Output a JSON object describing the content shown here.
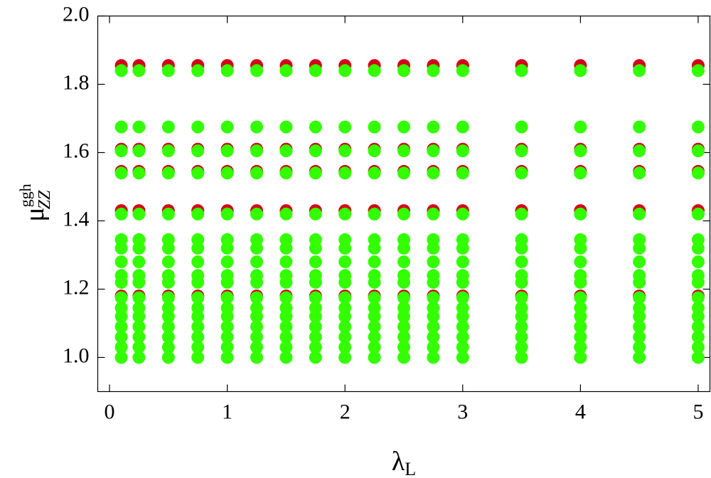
{
  "chart_data": {
    "type": "scatter",
    "xlabel": "λ",
    "xlabel_sub": "L",
    "ylabel": "μ",
    "ylabel_sup": "ggh",
    "ylabel_sub": "ZZ",
    "xlim": [
      -0.1,
      5.1
    ],
    "ylim": [
      0.9,
      2.0
    ],
    "xticks": [
      0,
      1,
      2,
      3,
      4,
      5
    ],
    "yticks": [
      {
        "value": 1,
        "label": "1.0"
      },
      1.2,
      1.4,
      1.6,
      1.8,
      {
        "value": 2,
        "label": "2.0"
      }
    ],
    "series": [
      {
        "color": "#d40018",
        "x": [
          0.1,
          0.1,
          0.1,
          0.1,
          0.1,
          0.25,
          0.25,
          0.25,
          0.25,
          0.25,
          0.5,
          0.5,
          0.5,
          0.5,
          0.5,
          0.75,
          0.75,
          0.75,
          0.75,
          0.75,
          1,
          1,
          1,
          1,
          1,
          1.25,
          1.25,
          1.25,
          1.25,
          1.25,
          1.5,
          1.5,
          1.5,
          1.5,
          1.5,
          1.75,
          1.75,
          1.75,
          1.75,
          1.75,
          2,
          2,
          2,
          2,
          2,
          2.25,
          2.25,
          2.25,
          2.25,
          2.25,
          2.5,
          2.5,
          2.5,
          2.5,
          2.5,
          2.75,
          2.75,
          2.75,
          2.75,
          2.75,
          3,
          3,
          3,
          3,
          3,
          3.5,
          3.5,
          3.5,
          3.5,
          3.5,
          4,
          4,
          4,
          4,
          4,
          4.5,
          4.5,
          4.5,
          4.5,
          4.5,
          5,
          5,
          5,
          5,
          5
        ],
        "values": [
          1.18,
          1.43,
          1.545,
          1.61,
          1.855,
          1.18,
          1.43,
          1.545,
          1.61,
          1.855,
          1.18,
          1.43,
          1.545,
          1.61,
          1.855,
          1.18,
          1.43,
          1.545,
          1.61,
          1.855,
          1.18,
          1.43,
          1.545,
          1.61,
          1.855,
          1.18,
          1.43,
          1.545,
          1.61,
          1.855,
          1.18,
          1.43,
          1.545,
          1.61,
          1.855,
          1.18,
          1.43,
          1.545,
          1.61,
          1.855,
          1.18,
          1.43,
          1.545,
          1.61,
          1.855,
          1.18,
          1.43,
          1.545,
          1.61,
          1.855,
          1.18,
          1.43,
          1.545,
          1.61,
          1.855,
          1.18,
          1.43,
          1.545,
          1.61,
          1.855,
          1.18,
          1.43,
          1.545,
          1.61,
          1.855,
          1.18,
          1.43,
          1.545,
          1.61,
          1.855,
          1.18,
          1.43,
          1.545,
          1.61,
          1.855,
          1.18,
          1.43,
          1.545,
          1.61,
          1.855,
          1.18,
          1.43,
          1.545,
          1.61,
          1.855
        ]
      },
      {
        "color": "#33ff00",
        "x": [
          0.1,
          0.1,
          0.1,
          0.1,
          0.1,
          0.1,
          0.1,
          0.1,
          0.1,
          0.1,
          0.1,
          0.1,
          0.1,
          0.1,
          0.1,
          0.1,
          0.1,
          0.25,
          0.25,
          0.25,
          0.25,
          0.25,
          0.25,
          0.25,
          0.25,
          0.25,
          0.25,
          0.25,
          0.25,
          0.25,
          0.25,
          0.25,
          0.25,
          0.25,
          0.5,
          0.5,
          0.5,
          0.5,
          0.5,
          0.5,
          0.5,
          0.5,
          0.5,
          0.5,
          0.5,
          0.5,
          0.5,
          0.5,
          0.5,
          0.5,
          0.5,
          0.75,
          0.75,
          0.75,
          0.75,
          0.75,
          0.75,
          0.75,
          0.75,
          0.75,
          0.75,
          0.75,
          0.75,
          0.75,
          0.75,
          0.75,
          0.75,
          0.75,
          1,
          1,
          1,
          1,
          1,
          1,
          1,
          1,
          1,
          1,
          1,
          1,
          1,
          1,
          1,
          1,
          1,
          1.25,
          1.25,
          1.25,
          1.25,
          1.25,
          1.25,
          1.25,
          1.25,
          1.25,
          1.25,
          1.25,
          1.25,
          1.25,
          1.25,
          1.25,
          1.25,
          1.25,
          1.5,
          1.5,
          1.5,
          1.5,
          1.5,
          1.5,
          1.5,
          1.5,
          1.5,
          1.5,
          1.5,
          1.5,
          1.5,
          1.5,
          1.5,
          1.5,
          1.5,
          1.75,
          1.75,
          1.75,
          1.75,
          1.75,
          1.75,
          1.75,
          1.75,
          1.75,
          1.75,
          1.75,
          1.75,
          1.75,
          1.75,
          1.75,
          1.75,
          1.75,
          2,
          2,
          2,
          2,
          2,
          2,
          2,
          2,
          2,
          2,
          2,
          2,
          2,
          2,
          2,
          2,
          2,
          2.25,
          2.25,
          2.25,
          2.25,
          2.25,
          2.25,
          2.25,
          2.25,
          2.25,
          2.25,
          2.25,
          2.25,
          2.25,
          2.25,
          2.25,
          2.25,
          2.25,
          2.5,
          2.5,
          2.5,
          2.5,
          2.5,
          2.5,
          2.5,
          2.5,
          2.5,
          2.5,
          2.5,
          2.5,
          2.5,
          2.5,
          2.5,
          2.5,
          2.5,
          2.75,
          2.75,
          2.75,
          2.75,
          2.75,
          2.75,
          2.75,
          2.75,
          2.75,
          2.75,
          2.75,
          2.75,
          2.75,
          2.75,
          2.75,
          2.75,
          2.75,
          3,
          3,
          3,
          3,
          3,
          3,
          3,
          3,
          3,
          3,
          3,
          3,
          3,
          3,
          3,
          3,
          3,
          3.5,
          3.5,
          3.5,
          3.5,
          3.5,
          3.5,
          3.5,
          3.5,
          3.5,
          3.5,
          3.5,
          3.5,
          3.5,
          3.5,
          3.5,
          3.5,
          3.5,
          4,
          4,
          4,
          4,
          4,
          4,
          4,
          4,
          4,
          4,
          4,
          4,
          4,
          4,
          4,
          4,
          4,
          4.5,
          4.5,
          4.5,
          4.5,
          4.5,
          4.5,
          4.5,
          4.5,
          4.5,
          4.5,
          4.5,
          4.5,
          4.5,
          4.5,
          4.5,
          4.5,
          4.5,
          5,
          5,
          5,
          5,
          5,
          5,
          5,
          5,
          5,
          5,
          5,
          5,
          5,
          5,
          5,
          5,
          5
        ],
        "values": [
          1.0,
          1.03,
          1.06,
          1.09,
          1.12,
          1.145,
          1.175,
          1.22,
          1.24,
          1.28,
          1.32,
          1.345,
          1.42,
          1.54,
          1.605,
          1.675,
          1.84,
          1.0,
          1.03,
          1.06,
          1.09,
          1.12,
          1.145,
          1.175,
          1.22,
          1.24,
          1.28,
          1.32,
          1.345,
          1.42,
          1.54,
          1.605,
          1.675,
          1.84,
          1.0,
          1.03,
          1.06,
          1.09,
          1.12,
          1.145,
          1.175,
          1.22,
          1.24,
          1.28,
          1.32,
          1.345,
          1.42,
          1.54,
          1.605,
          1.675,
          1.84,
          1.0,
          1.03,
          1.06,
          1.09,
          1.12,
          1.145,
          1.175,
          1.22,
          1.24,
          1.28,
          1.32,
          1.345,
          1.42,
          1.54,
          1.605,
          1.675,
          1.84,
          1.0,
          1.03,
          1.06,
          1.09,
          1.12,
          1.145,
          1.175,
          1.22,
          1.24,
          1.28,
          1.32,
          1.345,
          1.42,
          1.54,
          1.605,
          1.675,
          1.84,
          1.0,
          1.03,
          1.06,
          1.09,
          1.12,
          1.145,
          1.175,
          1.22,
          1.24,
          1.28,
          1.32,
          1.345,
          1.42,
          1.54,
          1.605,
          1.675,
          1.84,
          1.0,
          1.03,
          1.06,
          1.09,
          1.12,
          1.145,
          1.175,
          1.22,
          1.24,
          1.28,
          1.32,
          1.345,
          1.42,
          1.54,
          1.605,
          1.675,
          1.84,
          1.0,
          1.03,
          1.06,
          1.09,
          1.12,
          1.145,
          1.175,
          1.22,
          1.24,
          1.28,
          1.32,
          1.345,
          1.42,
          1.54,
          1.605,
          1.675,
          1.84,
          1.0,
          1.03,
          1.06,
          1.09,
          1.12,
          1.145,
          1.175,
          1.22,
          1.24,
          1.28,
          1.32,
          1.345,
          1.42,
          1.54,
          1.605,
          1.675,
          1.84,
          1.0,
          1.03,
          1.06,
          1.09,
          1.12,
          1.145,
          1.175,
          1.22,
          1.24,
          1.28,
          1.32,
          1.345,
          1.42,
          1.54,
          1.605,
          1.675,
          1.84,
          1.0,
          1.03,
          1.06,
          1.09,
          1.12,
          1.145,
          1.175,
          1.22,
          1.24,
          1.28,
          1.32,
          1.345,
          1.42,
          1.54,
          1.605,
          1.675,
          1.84,
          1.0,
          1.03,
          1.06,
          1.09,
          1.12,
          1.145,
          1.175,
          1.22,
          1.24,
          1.28,
          1.32,
          1.345,
          1.42,
          1.54,
          1.605,
          1.675,
          1.84,
          1.0,
          1.03,
          1.06,
          1.09,
          1.12,
          1.145,
          1.175,
          1.22,
          1.24,
          1.28,
          1.32,
          1.345,
          1.42,
          1.54,
          1.605,
          1.675,
          1.84,
          1.0,
          1.03,
          1.06,
          1.09,
          1.12,
          1.145,
          1.175,
          1.22,
          1.24,
          1.28,
          1.32,
          1.345,
          1.42,
          1.54,
          1.605,
          1.675,
          1.84,
          1.0,
          1.03,
          1.06,
          1.09,
          1.12,
          1.145,
          1.175,
          1.22,
          1.24,
          1.28,
          1.32,
          1.345,
          1.42,
          1.54,
          1.605,
          1.675,
          1.84,
          1.0,
          1.03,
          1.06,
          1.09,
          1.12,
          1.145,
          1.175,
          1.22,
          1.24,
          1.28,
          1.32,
          1.345,
          1.42,
          1.54,
          1.605,
          1.675,
          1.84,
          1.0,
          1.03,
          1.06,
          1.09,
          1.12,
          1.145,
          1.175,
          1.22,
          1.24,
          1.28,
          1.32,
          1.345,
          1.42,
          1.54,
          1.605,
          1.675,
          1.84
        ]
      }
    ]
  }
}
